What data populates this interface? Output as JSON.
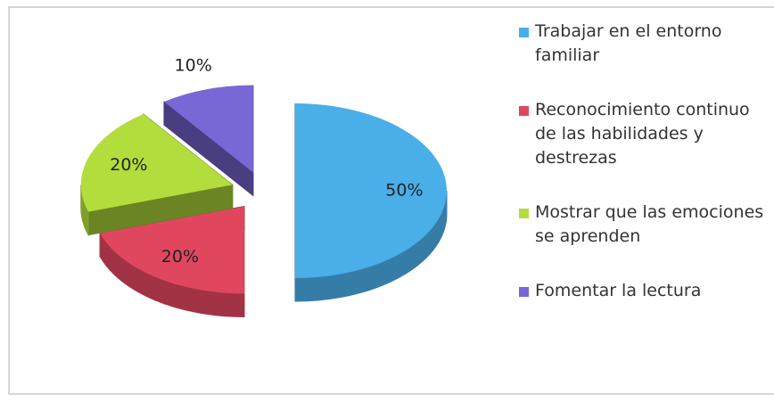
{
  "chart_data": {
    "type": "pie3d",
    "categories": [
      "Trabajar en el entorno familiar",
      "Reconocimiento continuo de las habilidades y destrezas",
      "Mostrar que las emociones se aprenden",
      "Fomentar la lectura"
    ],
    "values": [
      50,
      20,
      20,
      10
    ],
    "value_labels": [
      "50%",
      "20%",
      "20%",
      "10%"
    ],
    "colors": [
      "#4aaee8",
      "#e0475f",
      "#b3dd3c",
      "#7868d6"
    ],
    "legend": "right"
  }
}
